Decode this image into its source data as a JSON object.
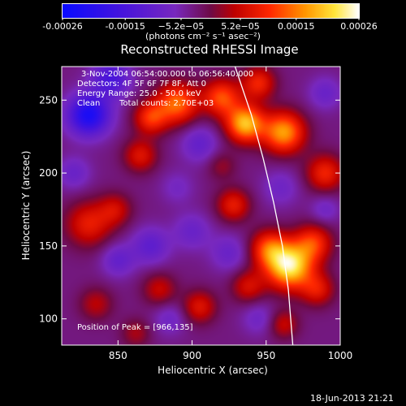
{
  "chart_data": {
    "type": "heatmap",
    "title": "Reconstructed RHESSI Image",
    "xlabel": "Heliocentric X (arcsec)",
    "ylabel": "Heliocentric Y (arcsec)",
    "xlim": [
      812,
      1000
    ],
    "ylim": [
      82,
      273
    ],
    "x_ticks": [
      850,
      900,
      950,
      1000
    ],
    "x_tick_labels": [
      "850",
      "900",
      "950",
      "1000"
    ],
    "y_ticks": [
      100,
      150,
      200,
      250
    ],
    "y_tick_labels": [
      "100",
      "150",
      "200",
      "250"
    ],
    "colorbar": {
      "range": [
        -0.00026,
        0.00026
      ],
      "ticks": [
        -0.00026,
        -0.00015,
        -5.2e-05,
        5.2e-05,
        0.00015,
        0.00026
      ],
      "tick_labels": [
        "-0.00026",
        "-0.00015",
        "−5.2e−05",
        "5.2e−05",
        "0.00015",
        "0.00026"
      ],
      "unit_label": "(photons cm⁻² s⁻¹ asec⁻²)"
    },
    "annotations": {
      "time_range": "3-Nov-2004 06:54:00.000 to 06:56:40.000",
      "detectors": "Detectors: 4F 5F 6F 7F 8F, Att 0",
      "energy": "Energy Range: 25.0 - 50.0 keV",
      "method": "Clean",
      "total_counts": "Total counts: 2.70E+03",
      "peak": "Position of Peak = [966,135]"
    },
    "peak": {
      "x": 966,
      "y": 135
    },
    "limb_curve": [
      [
        929,
        273
      ],
      [
        940,
        240
      ],
      [
        948,
        210
      ],
      [
        955,
        180
      ],
      [
        961,
        150
      ],
      [
        965,
        120
      ],
      [
        968,
        82
      ]
    ],
    "blobs": [
      {
        "x": 966,
        "y": 136,
        "r": 11,
        "v": 0.00026
      },
      {
        "x": 952,
        "y": 148,
        "r": 9,
        "v": 0.00014
      },
      {
        "x": 982,
        "y": 152,
        "r": 9,
        "v": 0.00013
      },
      {
        "x": 936,
        "y": 234,
        "r": 9,
        "v": 0.00022
      },
      {
        "x": 962,
        "y": 228,
        "r": 10,
        "v": 0.0002
      },
      {
        "x": 890,
        "y": 248,
        "r": 10,
        "v": 0.00017
      },
      {
        "x": 920,
        "y": 252,
        "r": 9,
        "v": 0.00015
      },
      {
        "x": 872,
        "y": 238,
        "r": 8,
        "v": 0.00013
      },
      {
        "x": 945,
        "y": 262,
        "r": 8,
        "v": 0.00012
      },
      {
        "x": 865,
        "y": 212,
        "r": 8,
        "v": 0.0001
      },
      {
        "x": 830,
        "y": 165,
        "r": 11,
        "v": 0.00011
      },
      {
        "x": 848,
        "y": 175,
        "r": 8,
        "v": 8e-05
      },
      {
        "x": 928,
        "y": 178,
        "r": 8,
        "v": 0.00011
      },
      {
        "x": 990,
        "y": 200,
        "r": 9,
        "v": 0.00012
      },
      {
        "x": 985,
        "y": 120,
        "r": 8,
        "v": 0.0001
      },
      {
        "x": 938,
        "y": 122,
        "r": 8,
        "v": 9e-05
      },
      {
        "x": 905,
        "y": 108,
        "r": 8,
        "v": 0.0001
      },
      {
        "x": 878,
        "y": 120,
        "r": 8,
        "v": 8e-05
      },
      {
        "x": 835,
        "y": 110,
        "r": 8,
        "v": 7e-05
      },
      {
        "x": 962,
        "y": 96,
        "r": 7,
        "v": 8e-05
      },
      {
        "x": 862,
        "y": 90,
        "r": 7,
        "v": 6e-05
      },
      {
        "x": 920,
        "y": 205,
        "r": 7,
        "v": 5e-05
      },
      {
        "x": 830,
        "y": 240,
        "r": 10,
        "v": -0.0002
      },
      {
        "x": 845,
        "y": 265,
        "r": 9,
        "v": -0.00012
      },
      {
        "x": 872,
        "y": 150,
        "r": 9,
        "v": -8e-05
      },
      {
        "x": 900,
        "y": 160,
        "r": 9,
        "v": -6e-05
      },
      {
        "x": 905,
        "y": 220,
        "r": 9,
        "v": -7e-05
      },
      {
        "x": 960,
        "y": 190,
        "r": 9,
        "v": -5e-05
      },
      {
        "x": 850,
        "y": 140,
        "r": 8,
        "v": -7e-05
      },
      {
        "x": 925,
        "y": 145,
        "r": 9,
        "v": -6e-05
      },
      {
        "x": 990,
        "y": 255,
        "r": 8,
        "v": -6e-05
      },
      {
        "x": 885,
        "y": 100,
        "r": 8,
        "v": -5e-05
      },
      {
        "x": 945,
        "y": 100,
        "r": 8,
        "v": -5e-05
      },
      {
        "x": 990,
        "y": 175,
        "r": 7,
        "v": -5e-05
      },
      {
        "x": 820,
        "y": 200,
        "r": 8,
        "v": -6e-05
      },
      {
        "x": 890,
        "y": 190,
        "r": 8,
        "v": -4e-05
      }
    ],
    "background_value": -3e-05
  },
  "timestamp": "18-Jun-2013 21:21"
}
